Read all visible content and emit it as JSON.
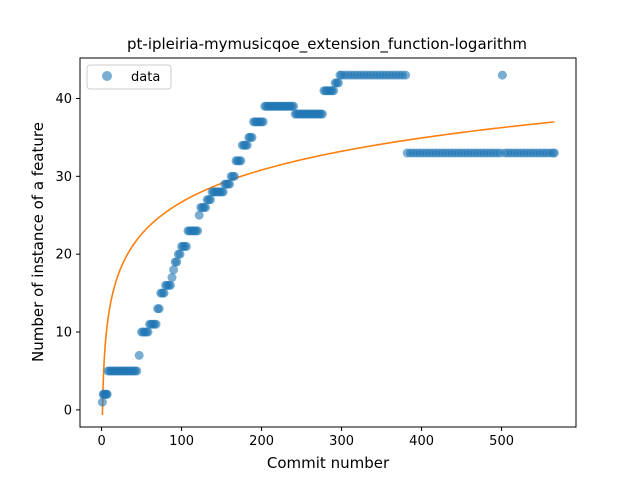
{
  "chart_data": {
    "type": "scatter",
    "title": "pt-ipleiria-mymusicqoe_extension_function-logarithm",
    "xlabel": "Commit number",
    "ylabel": "Number of instance of a feature",
    "xlim": [
      -27,
      593
    ],
    "ylim": [
      -2.2,
      45.2
    ],
    "xticks": [
      0,
      100,
      200,
      300,
      400,
      500
    ],
    "yticks": [
      0,
      10,
      20,
      30,
      40
    ],
    "grid": false,
    "legend": {
      "placement": "top-left",
      "entries": [
        "data"
      ]
    },
    "colors": {
      "points": "#1f77b4",
      "fit": "#ff7f0e"
    },
    "series": [
      {
        "name": "data",
        "kind": "scatter",
        "points": [
          [
            1,
            1
          ],
          [
            2,
            2
          ],
          [
            3,
            2
          ],
          [
            4,
            2
          ],
          [
            5,
            2
          ],
          [
            6,
            2
          ],
          [
            7,
            2
          ],
          [
            8,
            5
          ],
          [
            10,
            5
          ],
          [
            12,
            5
          ],
          [
            14,
            5
          ],
          [
            16,
            5
          ],
          [
            18,
            5
          ],
          [
            20,
            5
          ],
          [
            22,
            5
          ],
          [
            24,
            5
          ],
          [
            26,
            5
          ],
          [
            28,
            5
          ],
          [
            30,
            5
          ],
          [
            32,
            5
          ],
          [
            34,
            5
          ],
          [
            36,
            5
          ],
          [
            38,
            5
          ],
          [
            40,
            5
          ],
          [
            42,
            5
          ],
          [
            44,
            5
          ],
          [
            47,
            7
          ],
          [
            50,
            10
          ],
          [
            52,
            10
          ],
          [
            54,
            10
          ],
          [
            56,
            10
          ],
          [
            58,
            10
          ],
          [
            60,
            11
          ],
          [
            62,
            11
          ],
          [
            64,
            11
          ],
          [
            66,
            11
          ],
          [
            68,
            11
          ],
          [
            70,
            13
          ],
          [
            72,
            13
          ],
          [
            74,
            15
          ],
          [
            76,
            15
          ],
          [
            78,
            15
          ],
          [
            80,
            16
          ],
          [
            82,
            16
          ],
          [
            84,
            16
          ],
          [
            86,
            16
          ],
          [
            88,
            17
          ],
          [
            90,
            18
          ],
          [
            92,
            19
          ],
          [
            94,
            19
          ],
          [
            96,
            20
          ],
          [
            98,
            20
          ],
          [
            100,
            21
          ],
          [
            102,
            21
          ],
          [
            104,
            21
          ],
          [
            106,
            21
          ],
          [
            108,
            23
          ],
          [
            110,
            23
          ],
          [
            112,
            23
          ],
          [
            114,
            23
          ],
          [
            116,
            23
          ],
          [
            118,
            23
          ],
          [
            120,
            23
          ],
          [
            122,
            25
          ],
          [
            124,
            26
          ],
          [
            126,
            26
          ],
          [
            128,
            26
          ],
          [
            130,
            26
          ],
          [
            132,
            27
          ],
          [
            134,
            27
          ],
          [
            136,
            27
          ],
          [
            138,
            28
          ],
          [
            140,
            28
          ],
          [
            142,
            28
          ],
          [
            144,
            28
          ],
          [
            146,
            28
          ],
          [
            148,
            28
          ],
          [
            150,
            28
          ],
          [
            152,
            28
          ],
          [
            154,
            29
          ],
          [
            156,
            29
          ],
          [
            158,
            29
          ],
          [
            160,
            29
          ],
          [
            162,
            30
          ],
          [
            164,
            30
          ],
          [
            166,
            30
          ],
          [
            168,
            32
          ],
          [
            170,
            32
          ],
          [
            172,
            32
          ],
          [
            174,
            32
          ],
          [
            176,
            34
          ],
          [
            178,
            34
          ],
          [
            180,
            34
          ],
          [
            182,
            34
          ],
          [
            184,
            35
          ],
          [
            186,
            35
          ],
          [
            188,
            35
          ],
          [
            190,
            37
          ],
          [
            192,
            37
          ],
          [
            194,
            37
          ],
          [
            196,
            37
          ],
          [
            198,
            37
          ],
          [
            200,
            37
          ],
          [
            202,
            37
          ],
          [
            204,
            39
          ],
          [
            206,
            39
          ],
          [
            208,
            39
          ],
          [
            210,
            39
          ],
          [
            212,
            39
          ],
          [
            214,
            39
          ],
          [
            216,
            39
          ],
          [
            218,
            39
          ],
          [
            220,
            39
          ],
          [
            222,
            39
          ],
          [
            224,
            39
          ],
          [
            226,
            39
          ],
          [
            228,
            39
          ],
          [
            230,
            39
          ],
          [
            232,
            39
          ],
          [
            234,
            39
          ],
          [
            236,
            39
          ],
          [
            238,
            39
          ],
          [
            240,
            39
          ],
          [
            242,
            38
          ],
          [
            244,
            38
          ],
          [
            246,
            38
          ],
          [
            248,
            38
          ],
          [
            250,
            38
          ],
          [
            252,
            38
          ],
          [
            254,
            38
          ],
          [
            256,
            38
          ],
          [
            258,
            38
          ],
          [
            260,
            38
          ],
          [
            262,
            38
          ],
          [
            264,
            38
          ],
          [
            266,
            38
          ],
          [
            268,
            38
          ],
          [
            270,
            38
          ],
          [
            272,
            38
          ],
          [
            274,
            38
          ],
          [
            276,
            38
          ],
          [
            278,
            41
          ],
          [
            280,
            41
          ],
          [
            282,
            41
          ],
          [
            284,
            41
          ],
          [
            286,
            41
          ],
          [
            288,
            41
          ],
          [
            290,
            41
          ],
          [
            292,
            42
          ],
          [
            294,
            42
          ],
          [
            296,
            42
          ],
          [
            298,
            43
          ],
          [
            300,
            43
          ],
          [
            304,
            43
          ],
          [
            308,
            43
          ],
          [
            312,
            43
          ],
          [
            316,
            43
          ],
          [
            320,
            43
          ],
          [
            324,
            43
          ],
          [
            328,
            43
          ],
          [
            332,
            43
          ],
          [
            336,
            43
          ],
          [
            340,
            43
          ],
          [
            344,
            43
          ],
          [
            348,
            43
          ],
          [
            352,
            43
          ],
          [
            356,
            43
          ],
          [
            360,
            43
          ],
          [
            364,
            43
          ],
          [
            368,
            43
          ],
          [
            372,
            43
          ],
          [
            376,
            43
          ],
          [
            380,
            43
          ],
          [
            382,
            33
          ],
          [
            386,
            33
          ],
          [
            390,
            33
          ],
          [
            394,
            33
          ],
          [
            398,
            33
          ],
          [
            402,
            33
          ],
          [
            406,
            33
          ],
          [
            410,
            33
          ],
          [
            414,
            33
          ],
          [
            418,
            33
          ],
          [
            422,
            33
          ],
          [
            426,
            33
          ],
          [
            430,
            33
          ],
          [
            434,
            33
          ],
          [
            438,
            33
          ],
          [
            442,
            33
          ],
          [
            446,
            33
          ],
          [
            450,
            33
          ],
          [
            454,
            33
          ],
          [
            458,
            33
          ],
          [
            462,
            33
          ],
          [
            466,
            33
          ],
          [
            470,
            33
          ],
          [
            474,
            33
          ],
          [
            478,
            33
          ],
          [
            482,
            33
          ],
          [
            486,
            33
          ],
          [
            490,
            33
          ],
          [
            494,
            33
          ],
          [
            498,
            33
          ],
          [
            501,
            43
          ],
          [
            504,
            33
          ],
          [
            508,
            33
          ],
          [
            512,
            33
          ],
          [
            516,
            33
          ],
          [
            520,
            33
          ],
          [
            524,
            33
          ],
          [
            528,
            33
          ],
          [
            532,
            33
          ],
          [
            536,
            33
          ],
          [
            540,
            33
          ],
          [
            544,
            33
          ],
          [
            548,
            33
          ],
          [
            552,
            33
          ],
          [
            556,
            33
          ],
          [
            560,
            33
          ],
          [
            564,
            33
          ],
          [
            566,
            33
          ]
        ]
      },
      {
        "kind": "line",
        "function": "logarithm",
        "x_range": [
          0,
          566
        ],
        "a": 5.94,
        "b": -0.66,
        "formula": "y = a*ln(x) + b"
      }
    ]
  }
}
